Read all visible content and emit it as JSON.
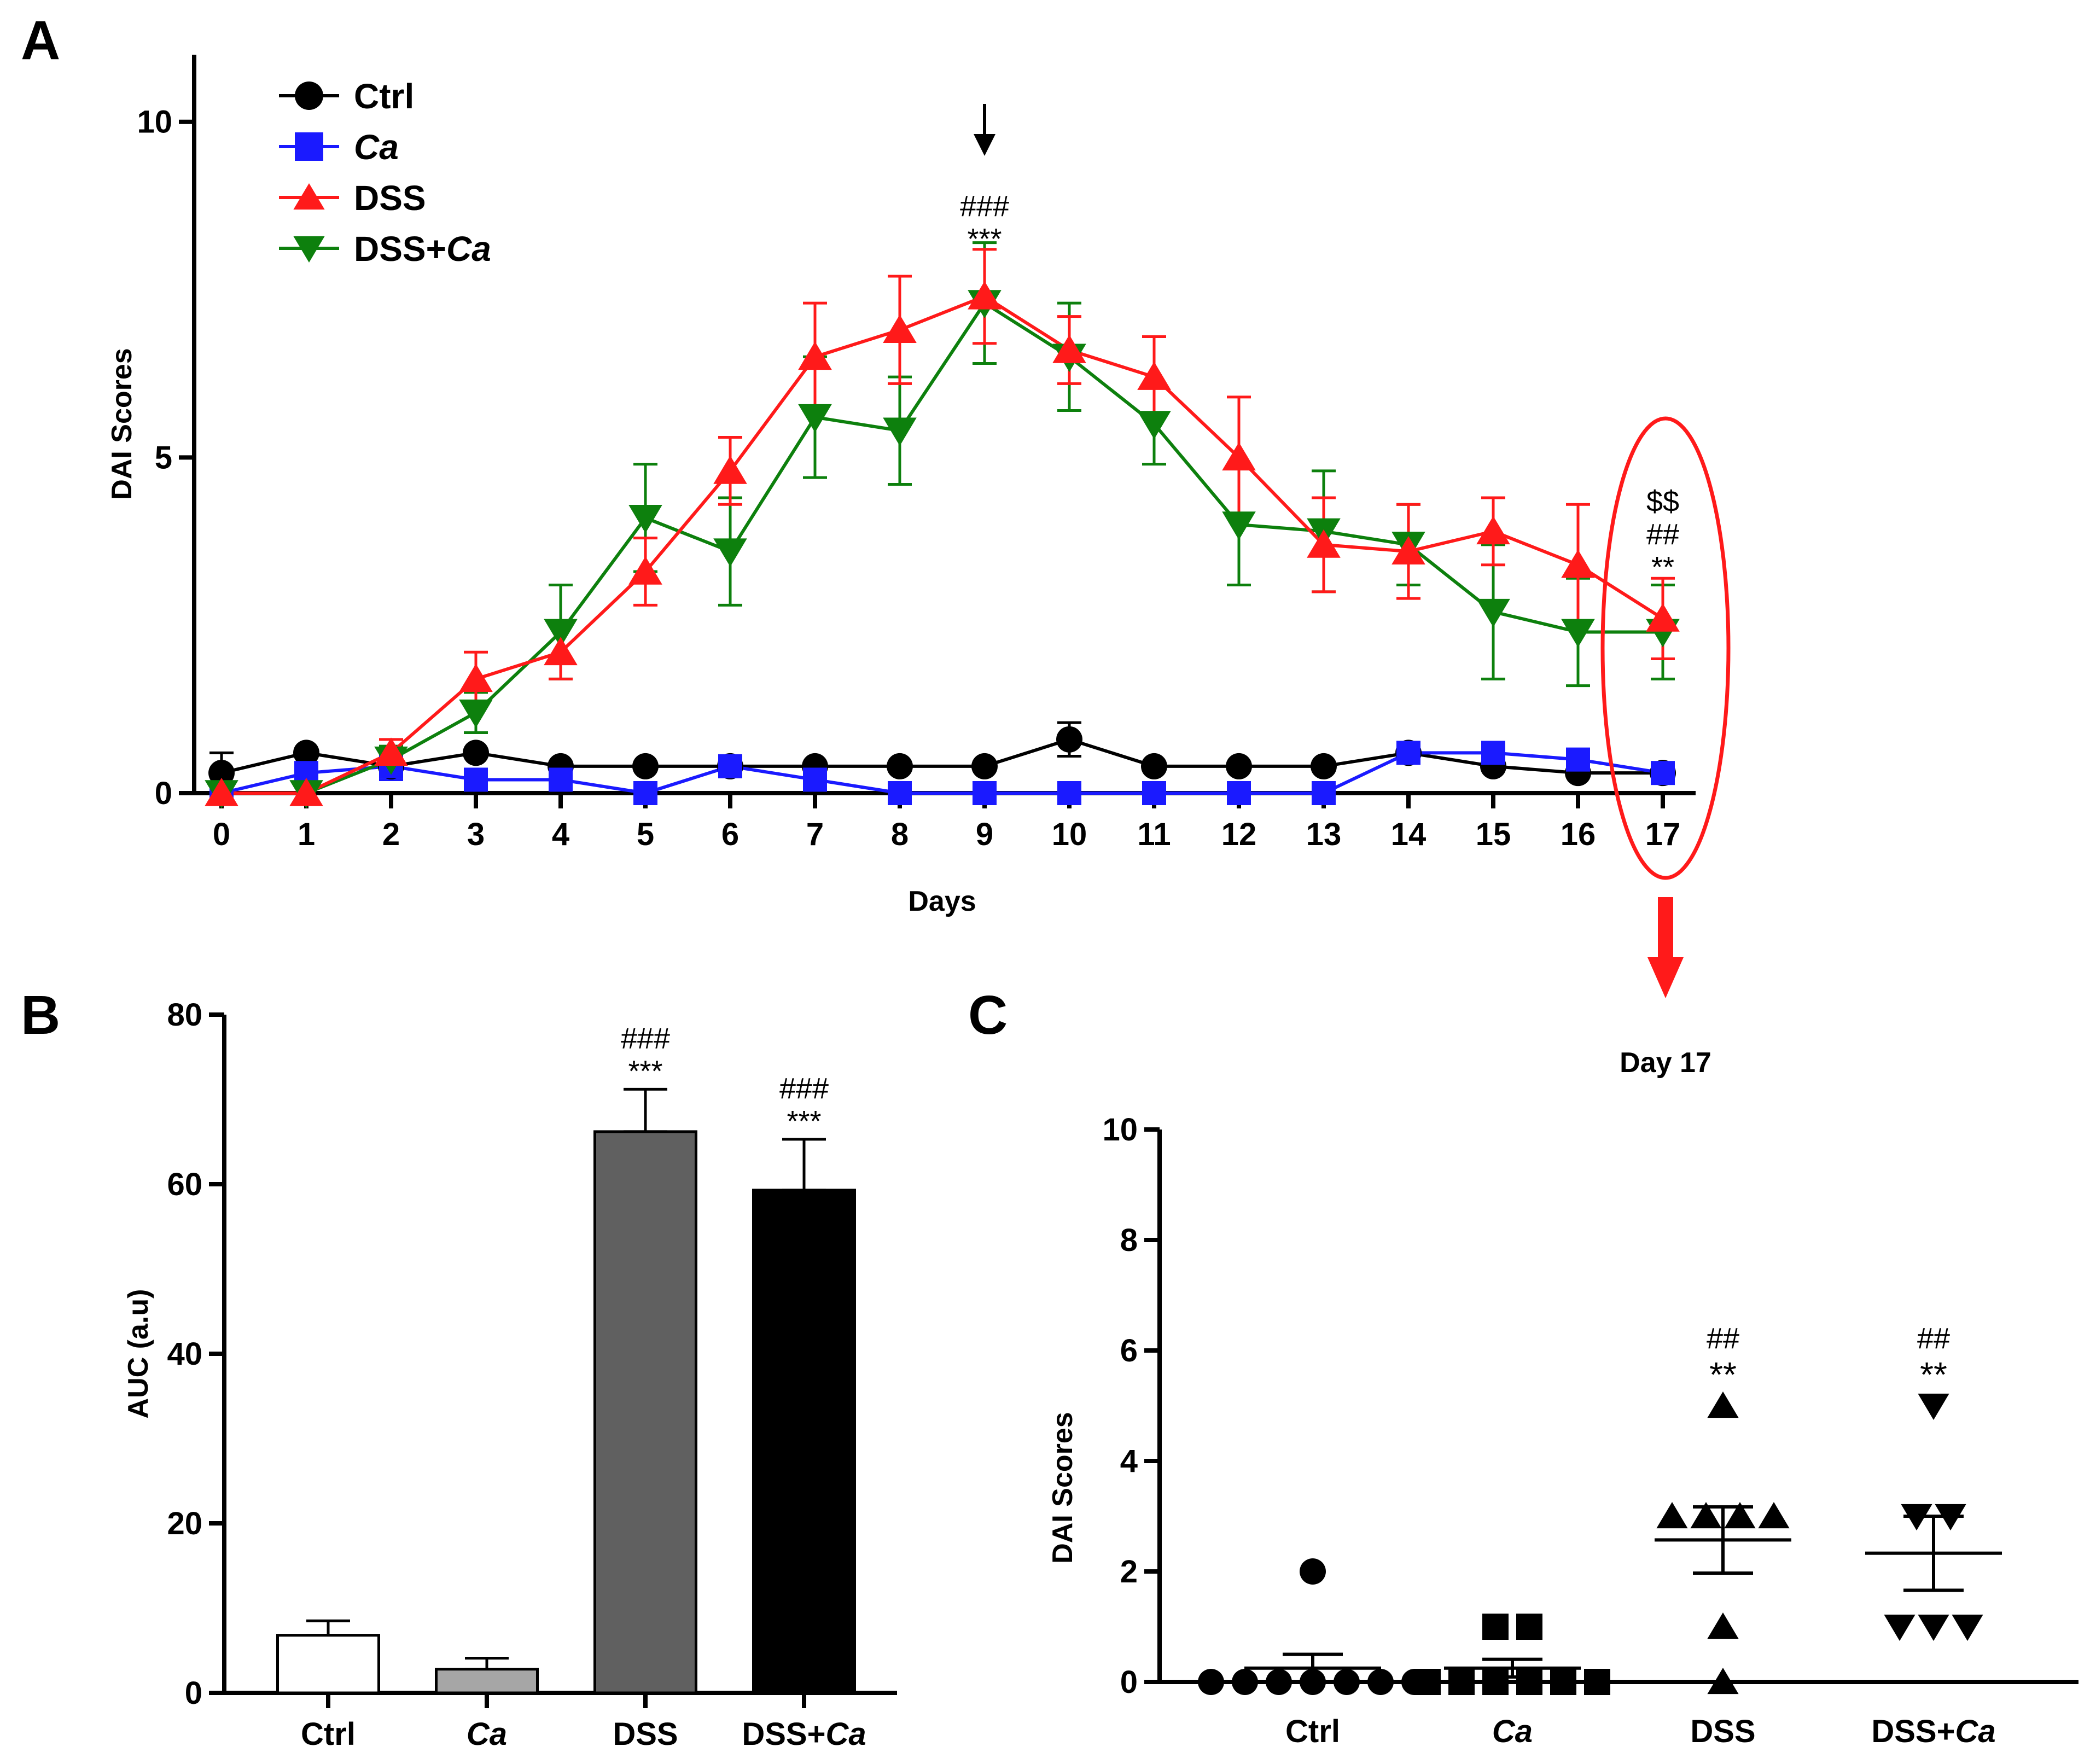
{
  "figure": {
    "panels": [
      "A",
      "B",
      "C"
    ],
    "day17_label": "Day 17"
  },
  "chart_data": [
    {
      "id": "A",
      "type": "line",
      "panel_label": "A",
      "xlabel": "Days",
      "ylabel": "DAI Scores",
      "xlim": [
        0,
        17
      ],
      "ylim": [
        0,
        11
      ],
      "yticks": [
        0,
        5,
        10
      ],
      "x": [
        0,
        1,
        2,
        3,
        4,
        5,
        6,
        7,
        8,
        9,
        10,
        11,
        12,
        13,
        14,
        15,
        16,
        17
      ],
      "colors": {
        "Ctrl": "#000000",
        "Ca": "#1a1aff",
        "DSS": "#ff1a1a",
        "DSS+Ca": "#0d800d"
      },
      "legend": [
        {
          "key": "Ctrl",
          "text": "Ctrl",
          "italic": ""
        },
        {
          "key": "Ca",
          "text": "",
          "italic": "Ca"
        },
        {
          "key": "DSS",
          "text": "DSS",
          "italic": ""
        },
        {
          "key": "DSS+Ca",
          "text": "DSS+",
          "italic": "Ca"
        }
      ],
      "series": [
        {
          "name": "Ctrl",
          "marker": "circle",
          "values": [
            0.3,
            0.6,
            0.4,
            0.6,
            0.4,
            0.4,
            0.4,
            0.4,
            0.4,
            0.4,
            0.8,
            0.4,
            0.4,
            0.4,
            0.6,
            0.4,
            0.3,
            0.3
          ],
          "errors": [
            0.3,
            0,
            0,
            0,
            0,
            0,
            0,
            0,
            0,
            0,
            0.25,
            0,
            0,
            0,
            0,
            0,
            0,
            0
          ]
        },
        {
          "name": "Ca",
          "marker": "square",
          "values": [
            0,
            0.3,
            0.4,
            0.2,
            0.2,
            0,
            0.4,
            0.2,
            0,
            0,
            0,
            0,
            0,
            0,
            0.6,
            0.6,
            0.5,
            0.3
          ],
          "errors": [
            0,
            0,
            0.2,
            0,
            0,
            0,
            0,
            0,
            0,
            0,
            0,
            0,
            0,
            0,
            0,
            0,
            0,
            0
          ]
        },
        {
          "name": "DSS",
          "marker": "triangle-up",
          "values": [
            0,
            0,
            0.6,
            1.7,
            2.1,
            3.3,
            4.8,
            6.5,
            6.9,
            7.4,
            6.6,
            6.2,
            5.0,
            3.7,
            3.6,
            3.9,
            3.4,
            2.6
          ],
          "errors": [
            0,
            0,
            0.2,
            0.4,
            0.4,
            0.5,
            0.5,
            0.8,
            0.8,
            0.7,
            0.5,
            0.6,
            0.9,
            0.7,
            0.7,
            0.5,
            0.9,
            0.6
          ]
        },
        {
          "name": "DSS+Ca",
          "marker": "triangle-down",
          "values": [
            0,
            0,
            0.5,
            1.2,
            2.4,
            4.1,
            3.6,
            5.6,
            5.4,
            7.3,
            6.5,
            5.5,
            4.0,
            3.9,
            3.7,
            2.7,
            2.4,
            2.4
          ],
          "errors": [
            0,
            0,
            0.2,
            0.3,
            0.7,
            0.8,
            0.8,
            0.9,
            0.8,
            0.9,
            0.8,
            0.6,
            0.9,
            0.9,
            0.6,
            1.0,
            0.8,
            0.7
          ]
        }
      ],
      "annotations": [
        {
          "day": 9,
          "lines": [
            "###",
            "***"
          ]
        },
        {
          "day": 17,
          "lines": [
            "$$",
            "##",
            "**"
          ]
        }
      ]
    },
    {
      "id": "B",
      "type": "bar",
      "panel_label": "B",
      "ylabel": "AUC (a.u)",
      "ylim": [
        0,
        80
      ],
      "yticks": [
        0,
        20,
        40,
        60,
        80
      ],
      "categories": [
        {
          "text": "Ctrl",
          "italic": ""
        },
        {
          "text": "",
          "italic": "Ca"
        },
        {
          "text": "DSS",
          "italic": ""
        },
        {
          "text": "DSS+",
          "italic": "Ca"
        }
      ],
      "values": [
        6.8,
        2.8,
        66.2,
        59.3
      ],
      "errors": [
        1.7,
        1.3,
        5.0,
        6.0
      ],
      "fills": [
        "#ffffff",
        "#a6a6a6",
        "#606060",
        "#000000"
      ],
      "annotations": [
        {
          "bar": 2,
          "lines": [
            "###",
            "***"
          ]
        },
        {
          "bar": 3,
          "lines": [
            "###",
            "***"
          ]
        }
      ]
    },
    {
      "id": "C",
      "type": "scatter",
      "panel_label": "C",
      "title": "Day 17",
      "ylabel": "DAI Scores",
      "ylim": [
        0,
        10
      ],
      "yticks": [
        0,
        2,
        4,
        6,
        8,
        10
      ],
      "categories": [
        {
          "text": "Ctrl",
          "italic": ""
        },
        {
          "text": "",
          "italic": "Ca"
        },
        {
          "text": "DSS",
          "italic": ""
        },
        {
          "text": "DSS+",
          "italic": "Ca"
        }
      ],
      "groups": [
        {
          "name": "Ctrl",
          "marker": "circle",
          "points": [
            2,
            0,
            0,
            0,
            0,
            0,
            0,
            0
          ],
          "mean": 0.25,
          "sem": 0.25
        },
        {
          "name": "Ca",
          "marker": "square",
          "points": [
            1,
            1,
            0,
            0,
            0,
            0,
            0,
            0
          ],
          "mean": 0.25,
          "sem": 0.16
        },
        {
          "name": "DSS",
          "marker": "triangle-up",
          "points": [
            5,
            3,
            3,
            3,
            3,
            1,
            0
          ],
          "mean": 2.57,
          "sem": 0.6
        },
        {
          "name": "DSS+Ca",
          "marker": "triangle-down",
          "points": [
            5,
            3,
            3,
            1,
            1,
            1
          ],
          "mean": 2.33,
          "sem": 0.67
        }
      ],
      "annotations": [
        {
          "group": 2,
          "lines": [
            "##",
            "**"
          ]
        },
        {
          "group": 3,
          "lines": [
            "##",
            "**"
          ]
        }
      ]
    }
  ]
}
